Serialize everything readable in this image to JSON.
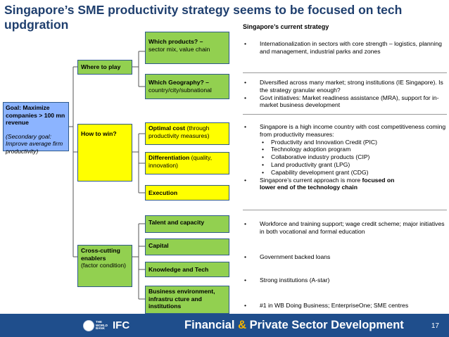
{
  "title": "Singapore’s SME productivity strategy seems to be focused on tech updgration",
  "strategy_header": "Singapore’s current strategy",
  "goal": {
    "main": "Goal: Maximize companies > 100 mn revenue",
    "secondary": "(Secondary goal: Improve average firm productivity)"
  },
  "levels": {
    "where": "Where to play",
    "how": "How to win?",
    "cross_bold": "Cross-cutting enablers",
    "cross_normal": "(factor condition)"
  },
  "options": {
    "products_bold": "Which products? –",
    "products_normal": "sector mix, value chain",
    "geography_bold": "Which Geography? –",
    "geography_normal": "country/city/subnational",
    "optimal_bold": "Optimal cost",
    "optimal_normal": " (through productivity measures)",
    "diff_bold": "Differentiation",
    "diff_normal": " (quality, innovation)",
    "execution": "Execution",
    "talent": "Talent and capacity",
    "capital": "Capital",
    "knowledge": "Knowledge and Tech",
    "business": "Business environment, infrastru cture and institutions"
  },
  "strategy": {
    "products": [
      "Internationalization in sectors with core strength – logistics, planning and management, industrial parks and zones"
    ],
    "geography": [
      "Diversified across many market; strong institutions (IE Singapore). Is the strategy granular enough?",
      "Govt initiatives: Market readiness assistance (MRA), support for in-market business development"
    ],
    "how_intro": "Singapore is a high income country with cost competitiveness coming from productivity measures:",
    "how_sub": [
      "Productivity and Innovation Credit (PIC)",
      "Technology adoption program",
      "Collaborative industry products (CIP)",
      "Land productivity grant (LPG)",
      "Capability development grant (CDG)"
    ],
    "how_last_normal": "Singapore’s current approach is more ",
    "how_last_bold1": "focused on",
    "how_last_bold2": "lower end of the technology chain",
    "talent": "Workforce and training support; wage credit scheme; major initiatives in both vocational and formal education",
    "capital": "Government backed loans",
    "knowledge": "Strong institutions (A-star)",
    "business": "#1 in WB Doing Business; EnterpriseOne; SME centres"
  },
  "footer": {
    "wb_line1": "THE",
    "wb_line2": "WORLD",
    "wb_line3": "BANK",
    "ifc": "IFC",
    "fpsd_part1": "Financial ",
    "fpsd_amp": "&",
    "fpsd_part2": " Private Sector Development",
    "page": "17"
  },
  "colors": {
    "title": "#1f3f6e",
    "green": "#92d050",
    "yellow": "#ffff00",
    "goal_blue": "#8cb4ff",
    "footer": "#1f4e8c"
  }
}
